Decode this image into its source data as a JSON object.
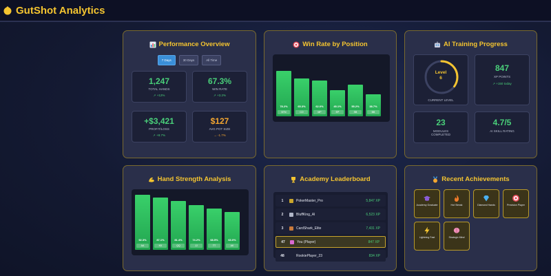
{
  "app": {
    "title": "GutShot Analytics",
    "logo_icon": "poker-chip-icon"
  },
  "performance": {
    "title": "Performance Overview",
    "icon": "bar-chart-icon",
    "tabs": [
      {
        "label": "7 Days",
        "active": true
      },
      {
        "label": "30 Days",
        "active": false
      },
      {
        "label": "All Time",
        "active": false
      }
    ],
    "stats": [
      {
        "value": "1,247",
        "label": "TOTAL HANDS",
        "delta": "↗ +12%",
        "color": "#4ad07a"
      },
      {
        "value": "67.3%",
        "label": "WIN RATE",
        "delta": "↗ +3.2%",
        "color": "#4ad07a"
      },
      {
        "value": "+$3,421",
        "label": "PROFIT/LOSS",
        "delta": "↗ +8.7%",
        "color": "#4ad07a"
      },
      {
        "value": "$127",
        "label": "AVG POT SIZE",
        "delta": "→ -1.7%",
        "color": "#f4a630"
      }
    ]
  },
  "winrate": {
    "title": "Win Rate by Position",
    "icon": "target-icon",
    "chart_data": {
      "type": "bar",
      "categories": [
        "BTN",
        "CO",
        "MP",
        "EP",
        "SB",
        "BB"
      ],
      "values": [
        78.2,
        65.3,
        62.0,
        45.1,
        55.2,
        38.7
      ],
      "labels": [
        "78.2%",
        "65.3%",
        "62.0%",
        "45.1%",
        "55.2%",
        "38.7%"
      ],
      "ylim": [
        0,
        100
      ]
    }
  },
  "ai_training": {
    "title": "AI Training Progress",
    "icon": "robot-icon",
    "level_label": "Level",
    "level_value": "6",
    "progress": 0.35,
    "current_level_label": "CURRENT LEVEL",
    "xp_value": "847",
    "xp_label": "XP POINTS",
    "xp_delta": "↗ +150 today",
    "modules_value": "23",
    "modules_label": "MODULES COMPLETED",
    "skill_value": "4.7/5",
    "skill_label": "AI SKILL RATING"
  },
  "hand_strength": {
    "title": "Hand Strength Analysis",
    "icon": "muscle-icon",
    "chart_data": {
      "type": "bar",
      "categories": [
        "AA",
        "KK",
        "QQ",
        "JJ",
        "TT",
        "AK"
      ],
      "values": [
        92.3,
        87.1,
        81.4,
        74.2,
        68.5,
        63.0
      ],
      "labels": [
        "92.3%",
        "87.1%",
        "81.4%",
        "74.2%",
        "68.5%",
        "63.0%"
      ],
      "ylim": [
        0,
        100
      ]
    }
  },
  "leaderboard": {
    "title": "Academy Leaderboard",
    "icon": "trophy-icon",
    "rows": [
      {
        "rank": "1",
        "name": "PokerMaster_Pro",
        "xp": "5,847 XP",
        "avatar": "#c9a52c"
      },
      {
        "rank": "2",
        "name": "BluffKing_AI",
        "xp": "6,523 XP",
        "avatar": "#b0b6c8"
      },
      {
        "rank": "3",
        "name": "CardShark_Elite",
        "xp": "7,431 XP",
        "avatar": "#c97a3c"
      },
      {
        "rank": "47",
        "name": "You (Player)",
        "xp": "847 XP",
        "avatar": "#d96ad0",
        "me": true
      },
      {
        "rank": "48",
        "name": "RookiePlayer_23",
        "xp": "834 XP",
        "avatar": ""
      }
    ]
  },
  "achievements": {
    "title": "Recent Achievements",
    "icon": "medal-icon",
    "items": [
      {
        "name": "Academy Graduate",
        "icon": "graduation-cap-icon",
        "color": "#8a5cd8"
      },
      {
        "name": "Hot Streak",
        "icon": "fire-icon",
        "color": "#f07a2a"
      },
      {
        "name": "Diamond Hands",
        "icon": "diamond-icon",
        "color": "#4ab0f0"
      },
      {
        "name": "Precision Player",
        "icon": "target-icon",
        "color": "#e84a5a"
      },
      {
        "name": "Lightning Fast",
        "icon": "lightning-icon",
        "color": "#f4c430"
      },
      {
        "name": "Strategic Mind",
        "icon": "brain-icon",
        "color": "#f090b8"
      }
    ]
  }
}
